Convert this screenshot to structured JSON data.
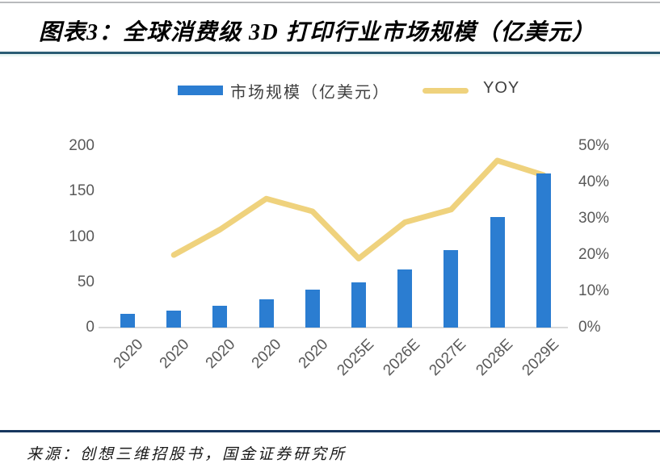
{
  "header": {
    "title": "图表3：全球消费级 3D 打印行业市场规模（亿美元）"
  },
  "legend": {
    "market_label": "市场规模（亿美元）",
    "yoy_label": "YOY"
  },
  "colors": {
    "bar_blue": "#2b7dd1",
    "line_yellow": "#efd27d",
    "title_rule": "#2a5c74",
    "footer_rule": "#17375e",
    "axis_text": "#595959",
    "baseline_gray": "#d9d9d9"
  },
  "chart_data": {
    "type": "bar",
    "subtype": "bar-with-line-overlay",
    "title": "全球消费级 3D 打印行业市场规模（亿美元）",
    "categories": [
      "2020",
      "2020",
      "2020",
      "2020",
      "2020",
      "2025E",
      "2026E",
      "2027E",
      "2028E",
      "2029E"
    ],
    "series": [
      {
        "name": "市场规模（亿美元）",
        "type": "bar",
        "axis": "left",
        "values": [
          15,
          19,
          24,
          31,
          42,
          50,
          64,
          85,
          122,
          170
        ]
      },
      {
        "name": "YOY",
        "type": "line",
        "axis": "right",
        "values": [
          null,
          20,
          27,
          35.5,
          32,
          19,
          29,
          32.5,
          46,
          42
        ]
      }
    ],
    "left_axis": {
      "ticks": [
        "0",
        "50",
        "100",
        "150",
        "200"
      ],
      "min": 0,
      "max": 200
    },
    "right_axis": {
      "ticks": [
        "0%",
        "10%",
        "20%",
        "30%",
        "40%",
        "50%"
      ],
      "min": 0,
      "max": 50,
      "unit": "%"
    },
    "grid": false,
    "legend_position": "top-center"
  },
  "footer": {
    "source": "来源：创想三维招股书，国金证券研究所"
  }
}
